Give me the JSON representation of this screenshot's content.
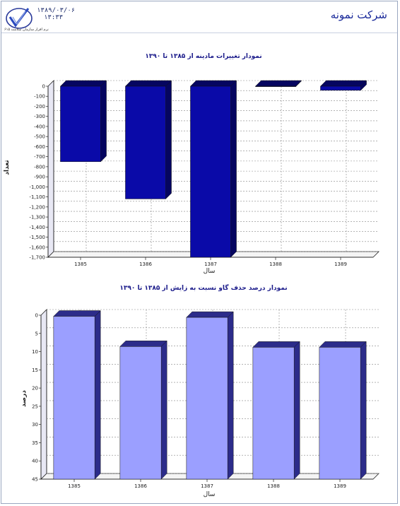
{
  "header": {
    "company_name": "شرکت نمونه",
    "date": "۱۳۸۹/۰۳/۰۶",
    "time": "۱۳:۳۳",
    "tagline": "نرم افزار سازمان سلامت ۶۱۵"
  },
  "colors": {
    "chart1_bar": "#0a0aa8",
    "chart1_bar_dark": "#050560",
    "chart2_bar": "#9b9fff",
    "chart2_bar_dark": "#2c2c8a",
    "title_color": "#1a1a8a"
  },
  "chart_data": [
    {
      "type": "bar",
      "title": "نمودار تغییرات مادینه از ۱۳۸۵ تا ۱۳۹۰",
      "xlabel": "سال",
      "ylabel": "تعداد",
      "categories": [
        "1385",
        "1386",
        "1387",
        "1388",
        "1389"
      ],
      "values": [
        -750,
        -1120,
        -1700,
        0,
        -40
      ],
      "ylim": [
        -1700,
        0
      ],
      "yticks": [
        "0",
        "-100",
        "-200",
        "-300",
        "-400",
        "-500",
        "-600",
        "-700",
        "-800",
        "-900",
        "-1,000",
        "-1,100",
        "-1,200",
        "-1,300",
        "-1,400",
        "-1,500",
        "-1,600",
        "-1,700"
      ],
      "grid": true
    },
    {
      "type": "bar",
      "title": "نمودار درصد حذف گاو نسبت به زایش از ۱۳۸۵ تا ۱۳۹۰",
      "xlabel": "سال",
      "ylabel": "درصد",
      "categories": [
        "1385",
        "1386",
        "1387",
        "1388",
        "1389"
      ],
      "values": [
        44.7,
        36.4,
        44.4,
        36.2,
        36.2
      ],
      "ylim": [
        0,
        45
      ],
      "yticks": [
        "0",
        "5",
        "10",
        "15",
        "20",
        "25",
        "30",
        "35",
        "40",
        "45"
      ],
      "grid": true
    }
  ]
}
